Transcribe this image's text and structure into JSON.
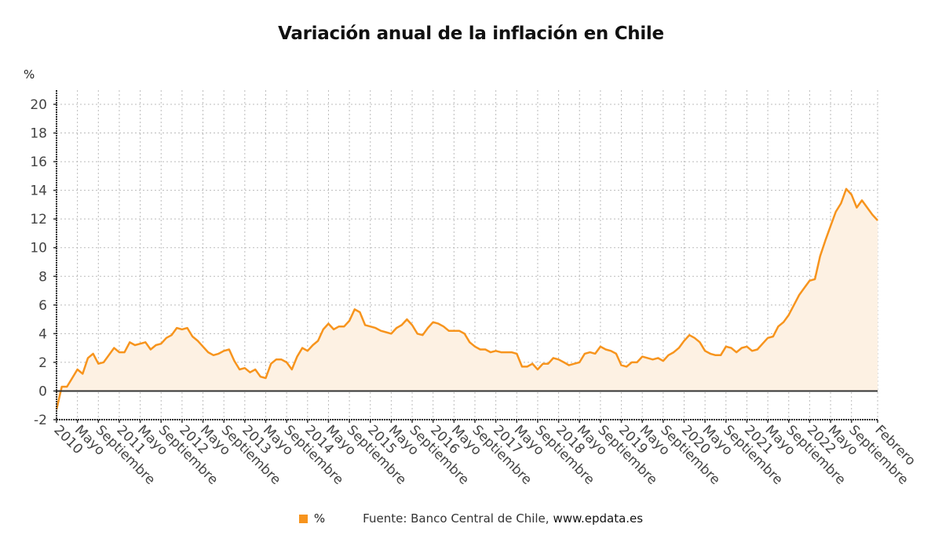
{
  "chart_data": {
    "type": "area",
    "title": "Variación anual de la inflación en Chile",
    "ylabel": "%",
    "xlabel": "",
    "ylim": [
      -2,
      20
    ],
    "yticks": [
      -2,
      0,
      2,
      4,
      6,
      8,
      10,
      12,
      14,
      16,
      18,
      20
    ],
    "grid": true,
    "legend_position": "bottom",
    "start": "2010-01",
    "end": "2023-02",
    "xtick_labels": [
      "2010",
      "Mayo",
      "Septiembre",
      "2011",
      "Mayo",
      "Septiembre",
      "2012",
      "Mayo",
      "Septiembre",
      "2013",
      "Mayo",
      "Septiembre",
      "2014",
      "Mayo",
      "Septiembre",
      "2015",
      "Mayo",
      "Septiembre",
      "2016",
      "Mayo",
      "Septiembre",
      "2017",
      "Mayo",
      "Septiembre",
      "2018",
      "Mayo",
      "Septiembre",
      "2019",
      "Mayo",
      "Septiembre",
      "2020",
      "Mayo",
      "Septiembre",
      "2021",
      "Mayo",
      "Septiembre",
      "2022",
      "Mayo",
      "Septiembre",
      "Febrero"
    ],
    "xtick_months": [
      0,
      4,
      8,
      12,
      16,
      20,
      24,
      28,
      32,
      36,
      40,
      44,
      48,
      52,
      56,
      60,
      64,
      68,
      72,
      76,
      80,
      84,
      88,
      92,
      96,
      100,
      104,
      108,
      112,
      116,
      120,
      124,
      128,
      132,
      136,
      140,
      144,
      148,
      152,
      157
    ],
    "series": [
      {
        "name": "%",
        "color": "#f7941d",
        "values": [
          -1.3,
          0.3,
          0.3,
          0.9,
          1.5,
          1.2,
          2.3,
          2.6,
          1.9,
          2.0,
          2.5,
          3.0,
          2.7,
          2.7,
          3.4,
          3.2,
          3.3,
          3.4,
          2.9,
          3.2,
          3.3,
          3.7,
          3.9,
          4.4,
          4.3,
          4.4,
          3.8,
          3.5,
          3.1,
          2.7,
          2.5,
          2.6,
          2.8,
          2.9,
          2.1,
          1.5,
          1.6,
          1.3,
          1.5,
          1.0,
          0.9,
          1.9,
          2.2,
          2.2,
          2.0,
          1.5,
          2.4,
          3.0,
          2.8,
          3.2,
          3.5,
          4.3,
          4.7,
          4.3,
          4.5,
          4.5,
          4.9,
          5.7,
          5.5,
          4.6,
          4.5,
          4.4,
          4.2,
          4.1,
          4.0,
          4.4,
          4.6,
          5.0,
          4.6,
          4.0,
          3.9,
          4.4,
          4.8,
          4.7,
          4.5,
          4.2,
          4.2,
          4.2,
          4.0,
          3.4,
          3.1,
          2.9,
          2.9,
          2.7,
          2.8,
          2.7,
          2.7,
          2.7,
          2.6,
          1.7,
          1.7,
          1.9,
          1.5,
          1.9,
          1.9,
          2.3,
          2.2,
          2.0,
          1.8,
          1.9,
          2.0,
          2.6,
          2.7,
          2.6,
          3.1,
          2.9,
          2.8,
          2.6,
          1.8,
          1.7,
          2.0,
          2.0,
          2.4,
          2.3,
          2.2,
          2.3,
          2.1,
          2.5,
          2.7,
          3.0,
          3.5,
          3.9,
          3.7,
          3.4,
          2.8,
          2.6,
          2.5,
          2.5,
          3.1,
          3.0,
          2.7,
          3.0,
          3.1,
          2.8,
          2.9,
          3.3,
          3.7,
          3.8,
          4.5,
          4.8,
          5.3,
          6.0,
          6.7,
          7.2,
          7.7,
          7.8,
          9.4,
          10.5,
          11.5,
          12.5,
          13.1,
          14.1,
          13.7,
          12.8,
          13.3,
          12.8,
          12.3,
          11.9
        ]
      }
    ]
  },
  "legend": {
    "series_label": "%",
    "source_label": "Fuente: Banco Central de Chile,",
    "source_site": "www.epdata.es"
  }
}
